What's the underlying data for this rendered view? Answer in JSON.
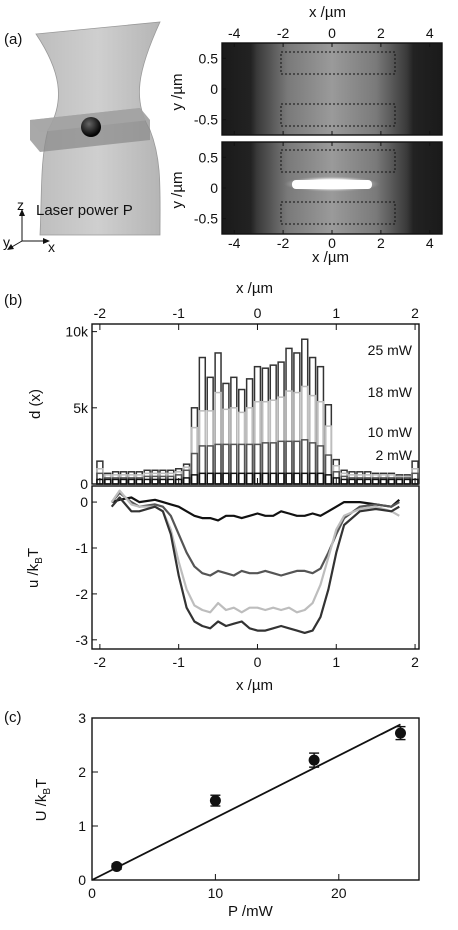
{
  "panels": {
    "a": {
      "label": "(a)",
      "sketch": {
        "power_label": "Laser power P",
        "axes": [
          "z",
          "y",
          "x"
        ]
      },
      "images": {
        "x_label": "x /µm",
        "y_label": "y /µm",
        "x_ticks": [
          -4,
          -2,
          0,
          2,
          4
        ],
        "y_ticks": [
          0.5,
          0,
          -0.5
        ],
        "x_range": [
          -4.5,
          4.5
        ],
        "y_range": [
          -0.75,
          0.75
        ]
      }
    },
    "b": {
      "label": "(b)",
      "top_x_label": "x /µm",
      "bottom_x_label": "x /µm",
      "hist_ylabel": "d (x)",
      "pot_ylabel": "u /kBT",
      "x_ticks": [
        -2,
        -1,
        0,
        1,
        2
      ],
      "hist_yticks": [
        "0",
        "5k",
        "10k"
      ],
      "pot_yticks": [
        0,
        -1,
        -2,
        -3
      ],
      "legend": [
        {
          "text": "25 mW",
          "color": "#333333"
        },
        {
          "text": "18 mW",
          "color": "#bdbdbd"
        },
        {
          "text": "10 mW",
          "color": "#555555"
        },
        {
          "text": "2 mW",
          "color": "#111111"
        }
      ]
    },
    "c": {
      "label": "(c)",
      "xlabel": "P /mW",
      "ylabel": "U /kBT",
      "x_ticks": [
        0,
        10,
        20
      ],
      "y_ticks": [
        0,
        1,
        2,
        3
      ]
    }
  },
  "chart_data": [
    {
      "type": "bar",
      "panel": "b-top",
      "ylabel": "d (x)",
      "xlim": [
        -2.1,
        2.05
      ],
      "ylim": [
        0,
        10500
      ],
      "x": [
        -2.0,
        -1.9,
        -1.8,
        -1.7,
        -1.6,
        -1.5,
        -1.4,
        -1.3,
        -1.2,
        -1.1,
        -1.0,
        -0.9,
        -0.8,
        -0.7,
        -0.6,
        -0.5,
        -0.4,
        -0.3,
        -0.2,
        -0.1,
        0.0,
        0.1,
        0.2,
        0.3,
        0.4,
        0.5,
        0.6,
        0.7,
        0.8,
        0.9,
        1.0,
        1.1,
        1.2,
        1.3,
        1.4,
        1.5,
        1.6,
        1.7,
        1.8,
        1.9,
        2.0
      ],
      "series": [
        {
          "name": "25 mW",
          "color": "#333333",
          "values": [
            1500,
            700,
            800,
            800,
            800,
            800,
            900,
            900,
            900,
            900,
            1000,
            1300,
            5000,
            8300,
            7000,
            8600,
            6600,
            7000,
            6200,
            6900,
            7700,
            7600,
            7800,
            8000,
            8900,
            8600,
            9500,
            8300,
            7700,
            5200,
            1600,
            900,
            800,
            800,
            800,
            700,
            700,
            700,
            600,
            600,
            1500
          ]
        },
        {
          "name": "18 mW",
          "color": "#bdbdbd",
          "values": [
            1000,
            600,
            600,
            600,
            600,
            600,
            700,
            700,
            700,
            700,
            800,
            1100,
            3700,
            4800,
            4800,
            6000,
            4900,
            5000,
            4700,
            5000,
            5400,
            5400,
            5500,
            5700,
            6100,
            6000,
            6400,
            5800,
            5400,
            3800,
            1200,
            700,
            600,
            600,
            600,
            600,
            600,
            600,
            500,
            500,
            1000
          ]
        },
        {
          "name": "10 mW",
          "color": "#555555",
          "values": [
            700,
            400,
            400,
            400,
            400,
            400,
            500,
            500,
            500,
            500,
            600,
            900,
            2000,
            2500,
            2500,
            2600,
            2600,
            2600,
            2600,
            2600,
            2600,
            2700,
            2700,
            2800,
            2800,
            2800,
            2900,
            2700,
            2500,
            1900,
            800,
            500,
            400,
            400,
            400,
            400,
            400,
            400,
            400,
            400,
            700
          ]
        },
        {
          "name": "2 mW",
          "color": "#111111",
          "values": [
            300,
            300,
            300,
            300,
            300,
            300,
            300,
            300,
            300,
            300,
            300,
            400,
            600,
            700,
            700,
            700,
            700,
            700,
            700,
            700,
            700,
            700,
            700,
            700,
            700,
            700,
            700,
            700,
            700,
            600,
            400,
            300,
            300,
            300,
            300,
            300,
            300,
            300,
            300,
            300,
            300
          ]
        }
      ]
    },
    {
      "type": "line",
      "panel": "b-bottom",
      "xlabel": "x /µm",
      "ylabel": "u /kBT",
      "xlim": [
        -2.1,
        2.05
      ],
      "ylim": [
        -3.2,
        0.35
      ],
      "x": [
        -1.85,
        -1.75,
        -1.6,
        -1.5,
        -1.3,
        -1.2,
        -1.1,
        -1.0,
        -0.9,
        -0.8,
        -0.7,
        -0.6,
        -0.5,
        -0.4,
        -0.3,
        -0.2,
        -0.1,
        0.0,
        0.1,
        0.2,
        0.3,
        0.4,
        0.5,
        0.6,
        0.7,
        0.8,
        0.9,
        1.0,
        1.1,
        1.3,
        1.5,
        1.7,
        1.8
      ],
      "series": [
        {
          "name": "2 mW",
          "color": "#111111",
          "values": [
            0.0,
            0.05,
            0.1,
            0.0,
            0.05,
            0.0,
            -0.05,
            -0.1,
            -0.2,
            -0.3,
            -0.35,
            -0.35,
            -0.4,
            -0.3,
            -0.3,
            -0.35,
            -0.3,
            -0.25,
            -0.3,
            -0.3,
            -0.2,
            -0.25,
            -0.3,
            -0.3,
            -0.25,
            -0.3,
            -0.2,
            -0.1,
            0.0,
            0.0,
            -0.05,
            -0.1,
            0.05
          ]
        },
        {
          "name": "10 mW",
          "color": "#555555",
          "values": [
            0.0,
            0.2,
            0.0,
            -0.1,
            -0.05,
            -0.1,
            -0.3,
            -0.7,
            -1.1,
            -1.4,
            -1.55,
            -1.6,
            -1.5,
            -1.55,
            -1.6,
            -1.5,
            -1.55,
            -1.55,
            -1.5,
            -1.55,
            -1.6,
            -1.55,
            -1.5,
            -1.5,
            -1.55,
            -1.45,
            -1.1,
            -0.7,
            -0.35,
            -0.1,
            -0.05,
            -0.1,
            0.0
          ]
        },
        {
          "name": "18 mW",
          "color": "#bdbdbd",
          "values": [
            0.0,
            0.25,
            -0.05,
            -0.1,
            -0.1,
            -0.2,
            -0.6,
            -1.3,
            -1.9,
            -2.25,
            -2.35,
            -2.4,
            -2.2,
            -2.35,
            -2.3,
            -2.4,
            -2.3,
            -2.3,
            -2.35,
            -2.3,
            -2.35,
            -2.3,
            -2.4,
            -2.35,
            -2.2,
            -1.8,
            -1.2,
            -0.6,
            -0.3,
            -0.15,
            -0.1,
            -0.2,
            -0.3
          ]
        },
        {
          "name": "25 mW",
          "color": "#333333",
          "values": [
            -0.1,
            0.1,
            -0.2,
            -0.2,
            -0.1,
            -0.2,
            -0.7,
            -1.6,
            -2.3,
            -2.6,
            -2.7,
            -2.75,
            -2.6,
            -2.7,
            -2.65,
            -2.6,
            -2.75,
            -2.8,
            -2.8,
            -2.75,
            -2.7,
            -2.75,
            -2.8,
            -2.85,
            -2.8,
            -2.5,
            -1.9,
            -1.1,
            -0.5,
            -0.2,
            -0.15,
            -0.2,
            -0.1
          ]
        }
      ]
    },
    {
      "type": "scatter",
      "panel": "c",
      "xlabel": "P /mW",
      "ylabel": "U /kBT",
      "xlim": [
        0,
        26.5
      ],
      "ylim": [
        0,
        3
      ],
      "points": [
        {
          "x": 2,
          "y": 0.25,
          "err": 0.05
        },
        {
          "x": 10,
          "y": 1.47,
          "err": 0.1
        },
        {
          "x": 18,
          "y": 2.22,
          "err": 0.13
        },
        {
          "x": 25,
          "y": 2.72,
          "err": 0.12
        }
      ],
      "fit": {
        "x": [
          0,
          25
        ],
        "y": [
          0.0,
          2.88
        ]
      }
    }
  ]
}
